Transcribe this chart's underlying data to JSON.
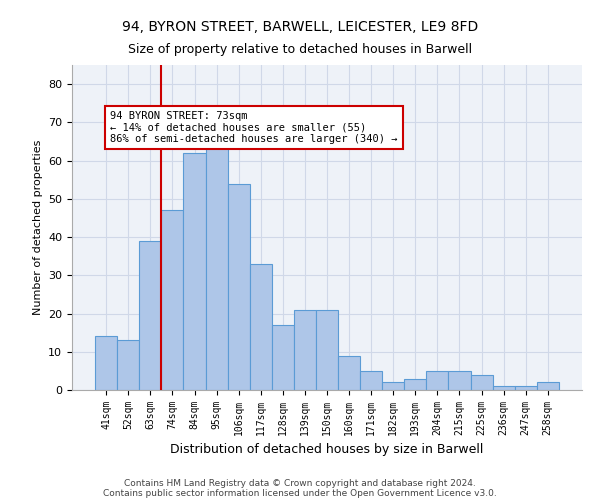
{
  "title1": "94, BYRON STREET, BARWELL, LEICESTER, LE9 8FD",
  "title2": "Size of property relative to detached houses in Barwell",
  "xlabel": "Distribution of detached houses by size in Barwell",
  "ylabel": "Number of detached properties",
  "categories": [
    "41sqm",
    "52sqm",
    "63sqm",
    "74sqm",
    "84sqm",
    "95sqm",
    "106sqm",
    "117sqm",
    "128sqm",
    "139sqm",
    "150sqm",
    "160sqm",
    "171sqm",
    "182sqm",
    "193sqm",
    "204sqm",
    "215sqm",
    "225sqm",
    "236sqm",
    "247sqm",
    "258sqm"
  ],
  "values": [
    14,
    13,
    39,
    47,
    62,
    65,
    54,
    33,
    17,
    21,
    21,
    9,
    5,
    2,
    3,
    5,
    5,
    4,
    1,
    1,
    2
  ],
  "bar_color": "#aec6e8",
  "bar_edge_color": "#5b9bd5",
  "annotation_text": "94 BYRON STREET: 73sqm\n← 14% of detached houses are smaller (55)\n86% of semi-detached houses are larger (340) →",
  "annotation_box_color": "#ffffff",
  "annotation_box_edge_color": "#cc0000",
  "vline_color": "#cc0000",
  "footer_line1": "Contains HM Land Registry data © Crown copyright and database right 2024.",
  "footer_line2": "Contains public sector information licensed under the Open Government Licence v3.0.",
  "ylim": [
    0,
    85
  ],
  "yticks": [
    0,
    10,
    20,
    30,
    40,
    50,
    60,
    70,
    80
  ],
  "grid_color": "#d0d8e8",
  "background_color": "#eef2f8",
  "title1_fontsize": 10,
  "title2_fontsize": 9
}
